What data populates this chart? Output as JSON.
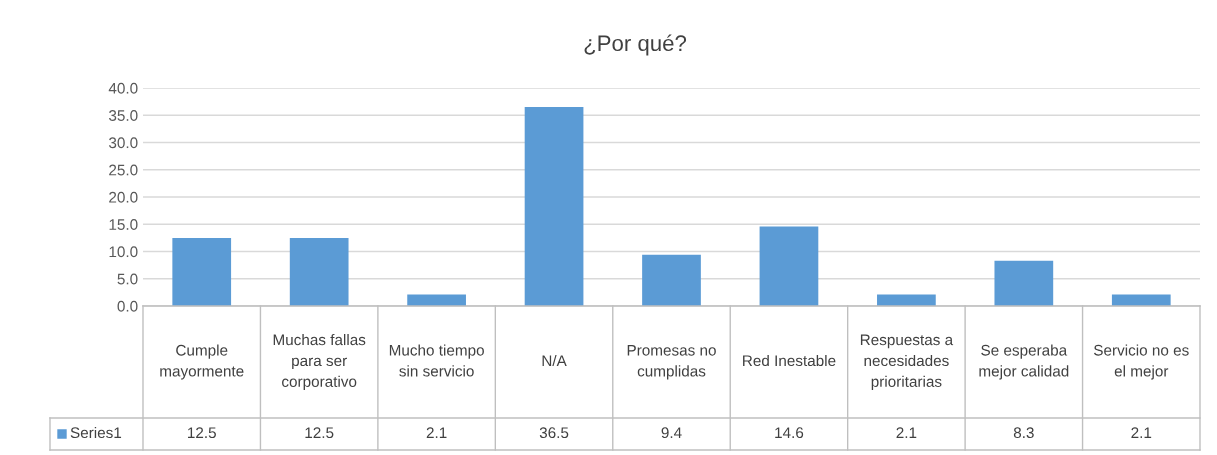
{
  "chart_data": {
    "type": "bar",
    "title": "¿Por qué?",
    "categories": [
      "Cumple mayormente",
      "Muchas fallas para ser corporativo",
      "Mucho tiempo sin servicio",
      "N/A",
      "Promesas no cumplidas",
      "Red Inestable",
      "Respuestas a necesidades prioritarias",
      "Se esperaba mejor calidad",
      "Servicio no es el mejor"
    ],
    "series": [
      {
        "name": "Series1",
        "color": "#5b9bd5",
        "values": [
          12.5,
          12.5,
          2.1,
          36.5,
          9.4,
          14.6,
          2.1,
          8.3,
          2.1
        ]
      }
    ],
    "ylim": [
      0,
      40
    ],
    "yticks": [
      {
        "value": 0,
        "label": "0.0"
      },
      {
        "value": 5,
        "label": "5.0"
      },
      {
        "value": 10,
        "label": "10.0"
      },
      {
        "value": 15,
        "label": "15.0"
      },
      {
        "value": 20,
        "label": "20.0"
      },
      {
        "value": 25,
        "label": "25.0"
      },
      {
        "value": 30,
        "label": "30.0"
      },
      {
        "value": 35,
        "label": "35.0"
      },
      {
        "value": 40,
        "label": "40.0"
      }
    ],
    "grid": "y",
    "data_labels": true,
    "legend": "bottom"
  }
}
